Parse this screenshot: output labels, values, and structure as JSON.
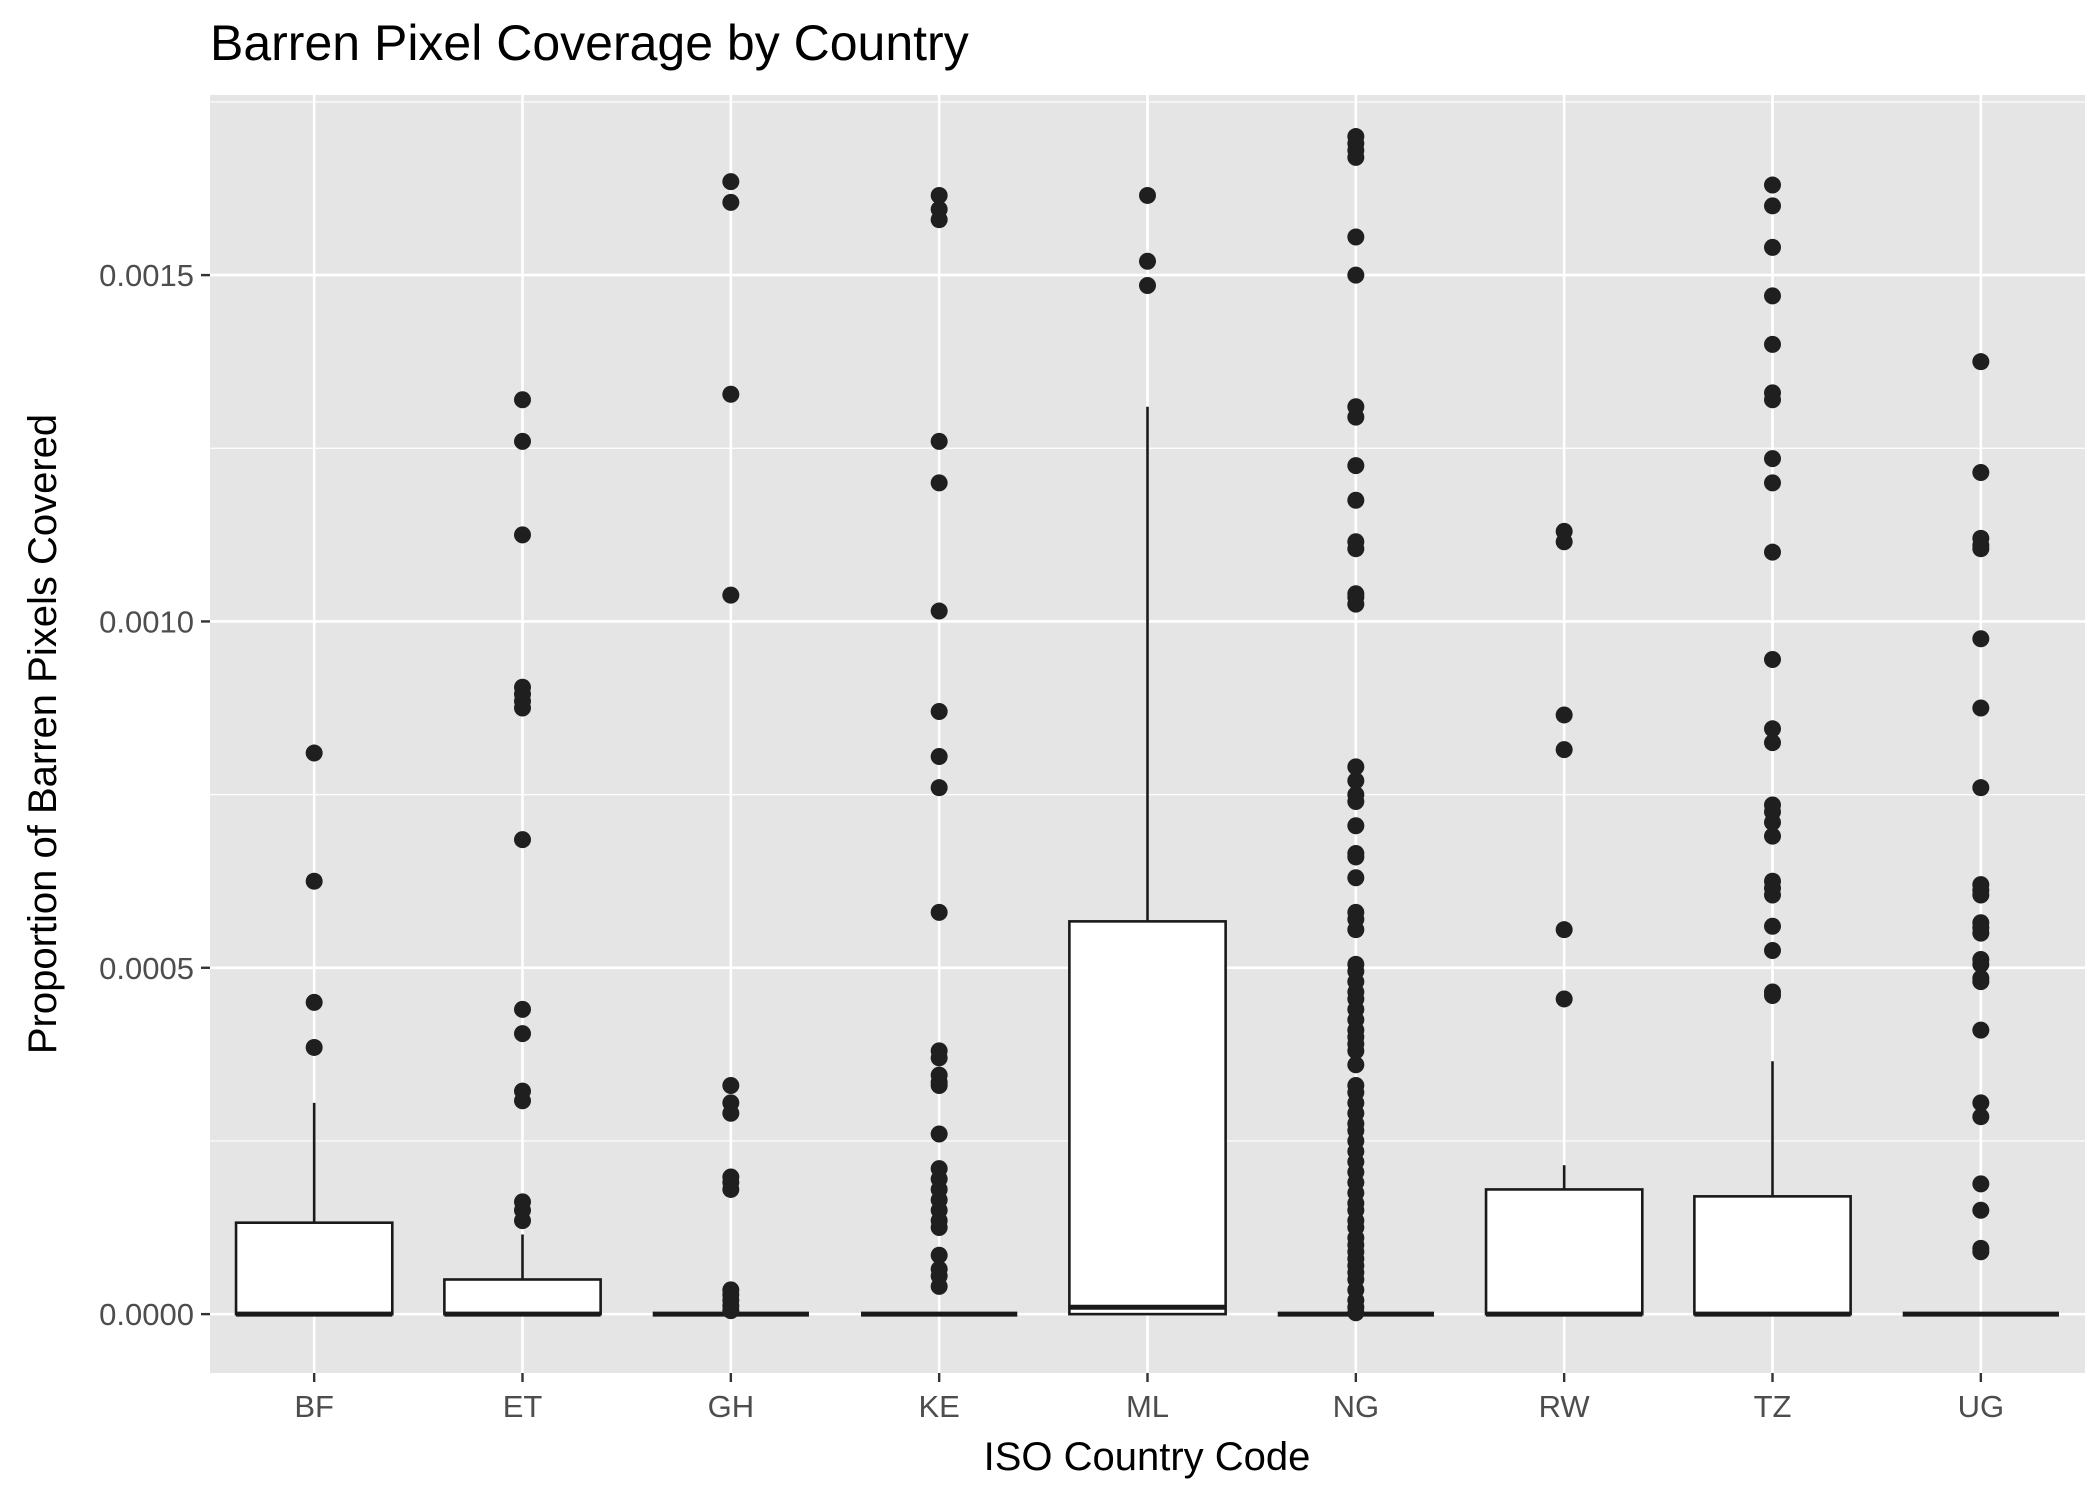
{
  "chart_data": {
    "type": "boxplot",
    "title": "Barren Pixel Coverage by Country",
    "xlabel": "ISO Country Code",
    "ylabel": "Proportion of Barren Pixels Covered",
    "ylim": [
      -8.5e-05,
      0.00176
    ],
    "y_ticks": [
      0.0,
      0.0005,
      0.001,
      0.0015
    ],
    "y_tick_labels": [
      "0.0000",
      "0.0005",
      "0.0010",
      "0.0015"
    ],
    "grid": true,
    "legend": "none",
    "categories": [
      "BF",
      "ET",
      "GH",
      "KE",
      "ML",
      "NG",
      "RW",
      "TZ",
      "UG"
    ],
    "boxes": [
      {
        "category": "BF",
        "whisker_low": 0.0,
        "q1": 0.0,
        "median": 0.0,
        "q3": 0.000132,
        "whisker_high": 0.000305,
        "outliers": [
          0.00081,
          0.000625,
          0.00045,
          0.000385
        ]
      },
      {
        "category": "ET",
        "whisker_low": 0.0,
        "q1": 0.0,
        "median": 0.0,
        "q3": 5e-05,
        "whisker_high": 0.000115,
        "outliers": [
          0.00132,
          0.00126,
          0.001125,
          0.000905,
          0.000895,
          0.000885,
          0.000875,
          0.000685,
          0.00044,
          0.000405,
          0.000322,
          0.000308,
          0.000162,
          0.00015,
          0.000135
        ]
      },
      {
        "category": "GH",
        "whisker_low": 0.0,
        "q1": 0.0,
        "median": 0.0,
        "q3": 0.0,
        "whisker_high": 0.0,
        "outliers": [
          0.001635,
          0.001605,
          0.001328,
          0.001038,
          0.00033,
          0.000305,
          0.00029,
          0.000198,
          0.00019,
          0.00018,
          3.5e-05,
          2.8e-05,
          2e-05,
          1.2e-05,
          5e-06
        ]
      },
      {
        "category": "KE",
        "whisker_low": 0.0,
        "q1": 0.0,
        "median": 0.0,
        "q3": 0.0,
        "whisker_high": 0.0,
        "outliers": [
          0.001615,
          0.001595,
          0.00158,
          0.00126,
          0.0012,
          0.001015,
          0.00087,
          0.000805,
          0.00076,
          0.00058,
          0.00038,
          0.00037,
          0.000345,
          0.000335,
          0.00033,
          0.00026,
          0.00021,
          0.000195,
          0.00018,
          0.000165,
          0.00015,
          0.000135,
          0.000125,
          8.5e-05,
          6.5e-05,
          5.5e-05,
          4e-05
        ]
      },
      {
        "category": "ML",
        "whisker_low": 0.0,
        "q1": 0.0,
        "median": 1e-05,
        "q3": 0.000567,
        "whisker_high": 0.00131,
        "outliers": [
          0.001615,
          0.00152,
          0.001485
        ]
      },
      {
        "category": "NG",
        "whisker_low": 0.0,
        "q1": 0.0,
        "median": 0.0,
        "q3": 0.0,
        "whisker_high": 0.0,
        "outliers": [
          0.0017,
          0.00169,
          0.00168,
          0.00167,
          0.001555,
          0.0015,
          0.00131,
          0.001295,
          0.001225,
          0.001175,
          0.001115,
          0.001105,
          0.00104,
          0.001035,
          0.001025,
          0.00079,
          0.00077,
          0.00075,
          0.00074,
          0.000705,
          0.000665,
          0.00066,
          0.00063,
          0.00058,
          0.00057,
          0.000555,
          0.000505,
          0.000495,
          0.00048,
          0.000465,
          0.000455,
          0.00044,
          0.000425,
          0.00041,
          0.0004,
          0.00039,
          0.00038,
          0.00036,
          0.00033,
          0.00032,
          0.000305,
          0.00029,
          0.000275,
          0.000265,
          0.00025,
          0.000235,
          0.00022,
          0.000205,
          0.00019,
          0.000175,
          0.00016,
          0.00015,
          0.000135,
          0.000125,
          0.00011,
          0.0001,
          9e-05,
          8e-05,
          7e-05,
          6e-05,
          5e-05,
          3.5e-05,
          2e-05,
          1e-05,
          2e-06
        ]
      },
      {
        "category": "RW",
        "whisker_low": 0.0,
        "q1": 0.0,
        "median": 0.0,
        "q3": 0.00018,
        "whisker_high": 0.000215,
        "outliers": [
          0.00113,
          0.001115,
          0.000865,
          0.000815,
          0.000555,
          0.000455
        ]
      },
      {
        "category": "TZ",
        "whisker_low": 0.0,
        "q1": 0.0,
        "median": 0.0,
        "q3": 0.00017,
        "whisker_high": 0.000365,
        "outliers": [
          0.00163,
          0.0016,
          0.00154,
          0.00147,
          0.0014,
          0.00133,
          0.00132,
          0.001235,
          0.0012,
          0.0011,
          0.000945,
          0.000845,
          0.000825,
          0.000735,
          0.000725,
          0.00071,
          0.00069,
          0.000625,
          0.000615,
          0.000605,
          0.00056,
          0.000525,
          0.000465,
          0.00046
        ]
      },
      {
        "category": "UG",
        "whisker_low": 0.0,
        "q1": 0.0,
        "median": 0.0,
        "q3": 0.0,
        "whisker_high": 0.0,
        "outliers": [
          0.001375,
          0.001215,
          0.00112,
          0.00111,
          0.001105,
          0.000975,
          0.000875,
          0.00076,
          0.00062,
          0.000612,
          0.000605,
          0.000565,
          0.000558,
          0.00055,
          0.000512,
          0.000505,
          0.000485,
          0.00048,
          0.00041,
          0.000305,
          0.000285,
          0.000188,
          0.00015,
          9.5e-05,
          9e-05
        ]
      }
    ],
    "colors": {
      "panel_background": "#e5e5e5",
      "grid": "#ffffff",
      "box_fill": "#ffffff",
      "box_stroke": "#1a1a1a",
      "point": "#1f1f1f",
      "tick_text": "#4d4d4d"
    }
  }
}
